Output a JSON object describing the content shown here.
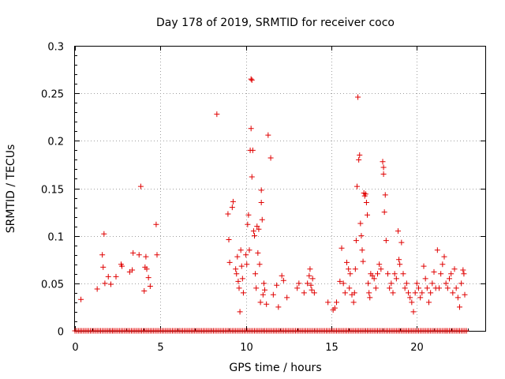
{
  "chart_data": {
    "type": "scatter",
    "title": "Day 178 of 2019, SRMTID for receiver coco",
    "xlabel": "GPS time / hours",
    "ylabel": "SRMTID / TECUs",
    "xlim": [
      0,
      24
    ],
    "ylim": [
      0,
      0.3
    ],
    "xticks": [
      0,
      5,
      10,
      15,
      20
    ],
    "yticks": [
      0,
      0.05,
      0.1,
      0.15,
      0.2,
      0.25,
      0.3
    ],
    "grid": true,
    "marker": "+",
    "color": "#e00000",
    "series": [
      {
        "name": "SRMTID",
        "points": [
          [
            0.35,
            0.033
          ],
          [
            1.3,
            0.044
          ],
          [
            1.6,
            0.08
          ],
          [
            1.65,
            0.067
          ],
          [
            1.7,
            0.102
          ],
          [
            1.75,
            0.05
          ],
          [
            1.95,
            0.057
          ],
          [
            2.1,
            0.049
          ],
          [
            2.4,
            0.057
          ],
          [
            2.7,
            0.07
          ],
          [
            2.75,
            0.068
          ],
          [
            3.2,
            0.062
          ],
          [
            3.35,
            0.064
          ],
          [
            3.4,
            0.082
          ],
          [
            3.75,
            0.08
          ],
          [
            3.85,
            0.152
          ],
          [
            4.05,
            0.042
          ],
          [
            4.1,
            0.067
          ],
          [
            4.15,
            0.078
          ],
          [
            4.2,
            0.065
          ],
          [
            4.3,
            0.056
          ],
          [
            4.4,
            0.047
          ],
          [
            4.75,
            0.112
          ],
          [
            4.8,
            0.08
          ],
          [
            8.3,
            0.228
          ],
          [
            8.95,
            0.123
          ],
          [
            9.0,
            0.096
          ],
          [
            9.05,
            0.072
          ],
          [
            9.2,
            0.13
          ],
          [
            9.25,
            0.136
          ],
          [
            9.4,
            0.065
          ],
          [
            9.45,
            0.06
          ],
          [
            9.5,
            0.078
          ],
          [
            9.55,
            0.052
          ],
          [
            9.6,
            0.045
          ],
          [
            9.65,
            0.02
          ],
          [
            9.7,
            0.085
          ],
          [
            9.75,
            0.068
          ],
          [
            9.8,
            0.055
          ],
          [
            9.85,
            0.04
          ],
          [
            10.0,
            0.08
          ],
          [
            10.05,
            0.07
          ],
          [
            10.1,
            0.112
          ],
          [
            10.15,
            0.122
          ],
          [
            10.2,
            0.085
          ],
          [
            10.25,
            0.19
          ],
          [
            10.3,
            0.265
          ],
          [
            10.3,
            0.213
          ],
          [
            10.35,
            0.264
          ],
          [
            10.35,
            0.162
          ],
          [
            10.4,
            0.19
          ],
          [
            10.45,
            0.105
          ],
          [
            10.5,
            0.1
          ],
          [
            10.55,
            0.06
          ],
          [
            10.6,
            0.045
          ],
          [
            10.65,
            0.11
          ],
          [
            10.7,
            0.082
          ],
          [
            10.75,
            0.107
          ],
          [
            10.8,
            0.07
          ],
          [
            10.85,
            0.03
          ],
          [
            10.9,
            0.148
          ],
          [
            10.9,
            0.135
          ],
          [
            10.95,
            0.117
          ],
          [
            11.0,
            0.038
          ],
          [
            11.05,
            0.05
          ],
          [
            11.1,
            0.043
          ],
          [
            11.2,
            0.028
          ],
          [
            11.3,
            0.206
          ],
          [
            11.45,
            0.182
          ],
          [
            11.6,
            0.038
          ],
          [
            11.8,
            0.048
          ],
          [
            11.9,
            0.025
          ],
          [
            12.1,
            0.058
          ],
          [
            12.2,
            0.053
          ],
          [
            12.4,
            0.035
          ],
          [
            13.0,
            0.045
          ],
          [
            13.1,
            0.05
          ],
          [
            13.4,
            0.04
          ],
          [
            13.6,
            0.05
          ],
          [
            13.7,
            0.058
          ],
          [
            13.75,
            0.065
          ],
          [
            13.8,
            0.048
          ],
          [
            13.85,
            0.043
          ],
          [
            13.9,
            0.055
          ],
          [
            14.0,
            0.04
          ],
          [
            14.8,
            0.03
          ],
          [
            15.1,
            0.022
          ],
          [
            15.2,
            0.024
          ],
          [
            15.3,
            0.03
          ],
          [
            15.5,
            0.052
          ],
          [
            15.6,
            0.087
          ],
          [
            15.7,
            0.05
          ],
          [
            15.8,
            0.04
          ],
          [
            15.9,
            0.072
          ],
          [
            16.0,
            0.065
          ],
          [
            16.05,
            0.045
          ],
          [
            16.1,
            0.06
          ],
          [
            16.2,
            0.038
          ],
          [
            16.3,
            0.03
          ],
          [
            16.35,
            0.04
          ],
          [
            16.4,
            0.065
          ],
          [
            16.45,
            0.095
          ],
          [
            16.5,
            0.152
          ],
          [
            16.55,
            0.246
          ],
          [
            16.6,
            0.18
          ],
          [
            16.65,
            0.185
          ],
          [
            16.7,
            0.113
          ],
          [
            16.75,
            0.1
          ],
          [
            16.8,
            0.085
          ],
          [
            16.85,
            0.073
          ],
          [
            16.9,
            0.145
          ],
          [
            16.95,
            0.142
          ],
          [
            17.0,
            0.144
          ],
          [
            17.05,
            0.135
          ],
          [
            17.1,
            0.122
          ],
          [
            17.15,
            0.05
          ],
          [
            17.2,
            0.04
          ],
          [
            17.25,
            0.035
          ],
          [
            17.3,
            0.06
          ],
          [
            17.4,
            0.058
          ],
          [
            17.5,
            0.055
          ],
          [
            17.6,
            0.045
          ],
          [
            17.7,
            0.06
          ],
          [
            17.8,
            0.07
          ],
          [
            17.9,
            0.065
          ],
          [
            18.0,
            0.178
          ],
          [
            18.05,
            0.172
          ],
          [
            18.05,
            0.165
          ],
          [
            18.1,
            0.125
          ],
          [
            18.15,
            0.143
          ],
          [
            18.2,
            0.095
          ],
          [
            18.3,
            0.06
          ],
          [
            18.4,
            0.045
          ],
          [
            18.5,
            0.05
          ],
          [
            18.6,
            0.04
          ],
          [
            18.7,
            0.06
          ],
          [
            18.8,
            0.055
          ],
          [
            18.9,
            0.105
          ],
          [
            18.95,
            0.075
          ],
          [
            19.0,
            0.07
          ],
          [
            19.1,
            0.093
          ],
          [
            19.2,
            0.06
          ],
          [
            19.3,
            0.045
          ],
          [
            19.4,
            0.05
          ],
          [
            19.5,
            0.04
          ],
          [
            19.6,
            0.035
          ],
          [
            19.7,
            0.03
          ],
          [
            19.8,
            0.02
          ],
          [
            19.9,
            0.04
          ],
          [
            20.0,
            0.05
          ],
          [
            20.1,
            0.045
          ],
          [
            20.2,
            0.035
          ],
          [
            20.3,
            0.04
          ],
          [
            20.4,
            0.068
          ],
          [
            20.5,
            0.055
          ],
          [
            20.6,
            0.045
          ],
          [
            20.7,
            0.03
          ],
          [
            20.8,
            0.04
          ],
          [
            20.9,
            0.05
          ],
          [
            21.0,
            0.062
          ],
          [
            21.1,
            0.045
          ],
          [
            21.2,
            0.085
          ],
          [
            21.3,
            0.045
          ],
          [
            21.4,
            0.06
          ],
          [
            21.5,
            0.07
          ],
          [
            21.6,
            0.078
          ],
          [
            21.7,
            0.05
          ],
          [
            21.8,
            0.045
          ],
          [
            21.9,
            0.055
          ],
          [
            22.0,
            0.06
          ],
          [
            22.1,
            0.04
          ],
          [
            22.2,
            0.065
          ],
          [
            22.3,
            0.045
          ],
          [
            22.4,
            0.035
          ],
          [
            22.5,
            0.025
          ],
          [
            22.6,
            0.05
          ],
          [
            22.7,
            0.064
          ],
          [
            22.75,
            0.06
          ],
          [
            22.8,
            0.038
          ],
          [
            2.2,
            0.0
          ],
          [
            12.6,
            0.0
          ],
          [
            21.7,
            0.0
          ]
        ]
      }
    ],
    "baseline_band": {
      "x_start": 0.0,
      "x_end": 22.9,
      "y": 0.0,
      "step": 0.1
    }
  }
}
